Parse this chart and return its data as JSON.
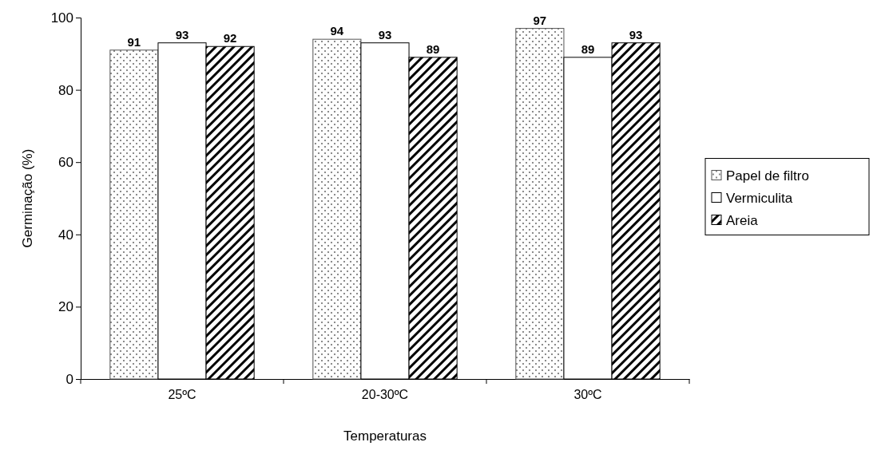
{
  "chart_data": {
    "type": "bar",
    "xlabel": "Temperaturas",
    "ylabel": "Germinação (%)",
    "categories": [
      "25ºC",
      "20-30ºC",
      "30ºC"
    ],
    "series": [
      {
        "name": "Papel de filtro",
        "color": "#555555",
        "values": [
          91,
          94,
          97
        ]
      },
      {
        "name": "Vermiculita",
        "color": "#ffffff",
        "values": [
          93,
          93,
          89
        ]
      },
      {
        "name": "Areia",
        "color": "#000000",
        "values": [
          92,
          89,
          93
        ]
      }
    ],
    "ylim": [
      0,
      100
    ],
    "yticks": [
      0,
      20,
      40,
      60,
      80,
      100
    ],
    "data_labels": true,
    "legend": "right",
    "grid": false
  }
}
